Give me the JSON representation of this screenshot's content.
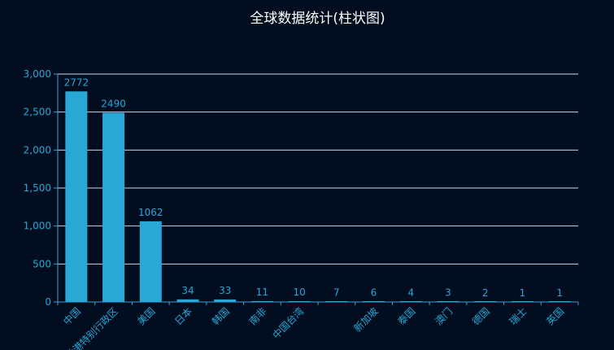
{
  "chart_data": {
    "type": "bar",
    "title": "全球数据统计(柱状图)",
    "categories": [
      "中国",
      "香港特别行政区",
      "美国",
      "日本",
      "韩国",
      "南非",
      "中国台湾",
      "",
      "新加坡",
      "泰国",
      "澳门",
      "德国",
      "瑞士",
      "英国"
    ],
    "values": [
      2772,
      2490,
      1062,
      34,
      33,
      11,
      10,
      7,
      6,
      4,
      3,
      2,
      1,
      1
    ],
    "ylim": [
      0,
      3000
    ],
    "yticks": [
      0,
      500,
      1000,
      1500,
      2000,
      2500,
      3000
    ],
    "ytick_labels": [
      "0",
      "500",
      "1,000",
      "1,500",
      "2,000",
      "2,500",
      "3,000"
    ],
    "grid": true,
    "colors": {
      "bar": "#29a8d6",
      "grid": "#c8d8e8",
      "axis": "#3b9fd0",
      "text": "#28a6d4",
      "title": "#ffffff",
      "background": "#020e20"
    }
  }
}
